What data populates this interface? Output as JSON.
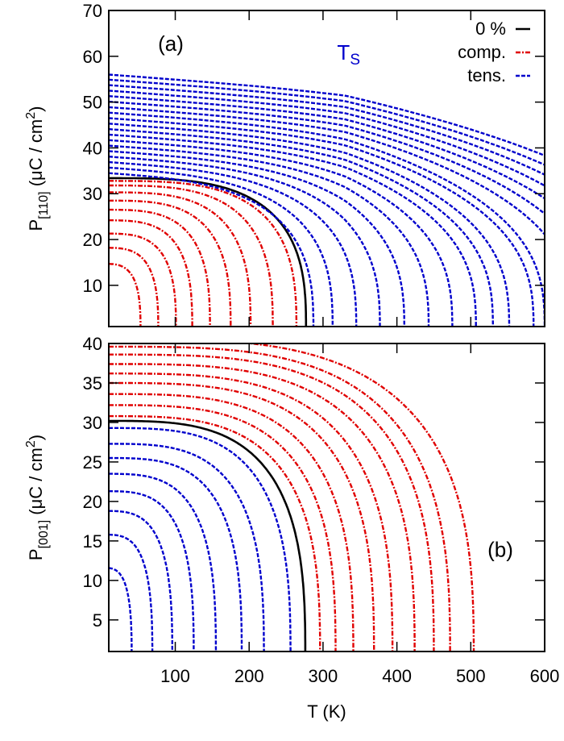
{
  "chart_data": [
    {
      "type": "line",
      "panel_label": "(a)",
      "annotation": {
        "text": "T",
        "sub": "S",
        "x": 330,
        "y": 61,
        "color": "#0000cc"
      },
      "xlabel": "",
      "ylabel": {
        "main": "P",
        "sub": "[110]",
        "unit": " (μC / cm",
        "sup": "2",
        "close": ")"
      },
      "xlim": [
        10,
        600
      ],
      "ylim": [
        1,
        70
      ],
      "yticks": [
        10,
        20,
        30,
        40,
        50,
        60,
        70
      ],
      "xticks": [
        100,
        200,
        300,
        400,
        500,
        600
      ],
      "grid": false,
      "legend": {
        "placement": "top-right",
        "entries": [
          {
            "label": "0 %",
            "color": "#000000",
            "style": "solid"
          },
          {
            "label": "comp.",
            "color": "#e00000",
            "style": "dash-dot"
          },
          {
            "label": "tens.",
            "color": "#0000cc",
            "style": "dashed"
          }
        ]
      },
      "series_groups": [
        {
          "group": "0 %",
          "color": "#000000",
          "style": "solid",
          "curves": [
            {
              "P_lowT": 33.4,
              "Tc": 277
            }
          ]
        },
        {
          "group": "comp.",
          "color": "#e00000",
          "style": "dash-dot",
          "curves": [
            {
              "P_lowT": 14.7,
              "Tc": 53
            },
            {
              "P_lowT": 18.2,
              "Tc": 77
            },
            {
              "P_lowT": 21.3,
              "Tc": 101
            },
            {
              "P_lowT": 24.2,
              "Tc": 123
            },
            {
              "P_lowT": 26.5,
              "Tc": 147
            },
            {
              "P_lowT": 28.5,
              "Tc": 175
            },
            {
              "P_lowT": 30.3,
              "Tc": 202
            },
            {
              "P_lowT": 31.8,
              "Tc": 232
            },
            {
              "P_lowT": 32.8,
              "Tc": 264
            }
          ]
        },
        {
          "group": "tens.",
          "color": "#0000cc",
          "style": "dashed",
          "Ts": 330,
          "curves": [
            {
              "P_lowT": 34.5,
              "Tc": 287
            },
            {
              "P_lowT": 35.7,
              "Tc": 313
            },
            {
              "P_lowT": 36.9,
              "Tc": 345
            },
            {
              "P_lowT": 38.1,
              "Tc": 377
            },
            {
              "P_lowT": 39.3,
              "Tc": 410
            },
            {
              "P_lowT": 40.5,
              "Tc": 443
            },
            {
              "P_lowT": 41.7,
              "Tc": 475
            },
            {
              "P_lowT": 42.9,
              "Tc": 507
            },
            {
              "P_lowT": 44.1,
              "Tc": 530
            },
            {
              "P_lowT": 45.3,
              "Tc": 552
            },
            {
              "P_lowT": 46.5,
              "Tc": 585
            },
            {
              "P_lowT": 47.7,
              "Tc": 600
            },
            {
              "P_lowT": 48.9,
              "Tc": 640
            },
            {
              "P_lowT": 50.1,
              "Tc": 670
            },
            {
              "P_lowT": 51.3,
              "Tc": 700
            },
            {
              "P_lowT": 52.5,
              "Tc": 730
            },
            {
              "P_lowT": 53.7,
              "Tc": 760
            },
            {
              "P_lowT": 54.9,
              "Tc": 790
            },
            {
              "P_lowT": 56.0,
              "Tc": 825
            }
          ]
        }
      ]
    },
    {
      "type": "line",
      "panel_label": "(b)",
      "xlabel": "T (K)",
      "ylabel": {
        "main": "P",
        "sub": "[001]",
        "unit": " (μC / cm",
        "sup": "2",
        "close": ")"
      },
      "xlim": [
        10,
        600
      ],
      "ylim": [
        1,
        40
      ],
      "yticks": [
        5,
        10,
        15,
        20,
        25,
        30,
        35,
        40
      ],
      "xticks": [
        100,
        200,
        300,
        400,
        500,
        600
      ],
      "grid": false,
      "series_groups": [
        {
          "group": "0 %",
          "color": "#000000",
          "style": "solid",
          "curves": [
            {
              "P_lowT": 30.2,
              "Tc": 276
            }
          ]
        },
        {
          "group": "tens.",
          "color": "#0000cc",
          "style": "dashed",
          "curves": [
            {
              "P_lowT": 11.6,
              "Tc": 41
            },
            {
              "P_lowT": 15.8,
              "Tc": 69
            },
            {
              "P_lowT": 18.8,
              "Tc": 96
            },
            {
              "P_lowT": 21.3,
              "Tc": 125
            },
            {
              "P_lowT": 23.5,
              "Tc": 155
            },
            {
              "P_lowT": 25.5,
              "Tc": 190
            },
            {
              "P_lowT": 27.3,
              "Tc": 220
            },
            {
              "P_lowT": 29.3,
              "Tc": 256
            }
          ]
        },
        {
          "group": "comp.",
          "color": "#e00000",
          "style": "dash-dot",
          "curves": [
            {
              "P_lowT": 30.8,
              "Tc": 296
            },
            {
              "P_lowT": 32.2,
              "Tc": 317
            },
            {
              "P_lowT": 33.6,
              "Tc": 341
            },
            {
              "P_lowT": 35.0,
              "Tc": 369
            },
            {
              "P_lowT": 36.2,
              "Tc": 394
            },
            {
              "P_lowT": 37.4,
              "Tc": 424
            },
            {
              "P_lowT": 38.6,
              "Tc": 450
            },
            {
              "P_lowT": 39.6,
              "Tc": 472
            },
            {
              "P_lowT": 40.6,
              "Tc": 504
            }
          ]
        }
      ]
    }
  ]
}
